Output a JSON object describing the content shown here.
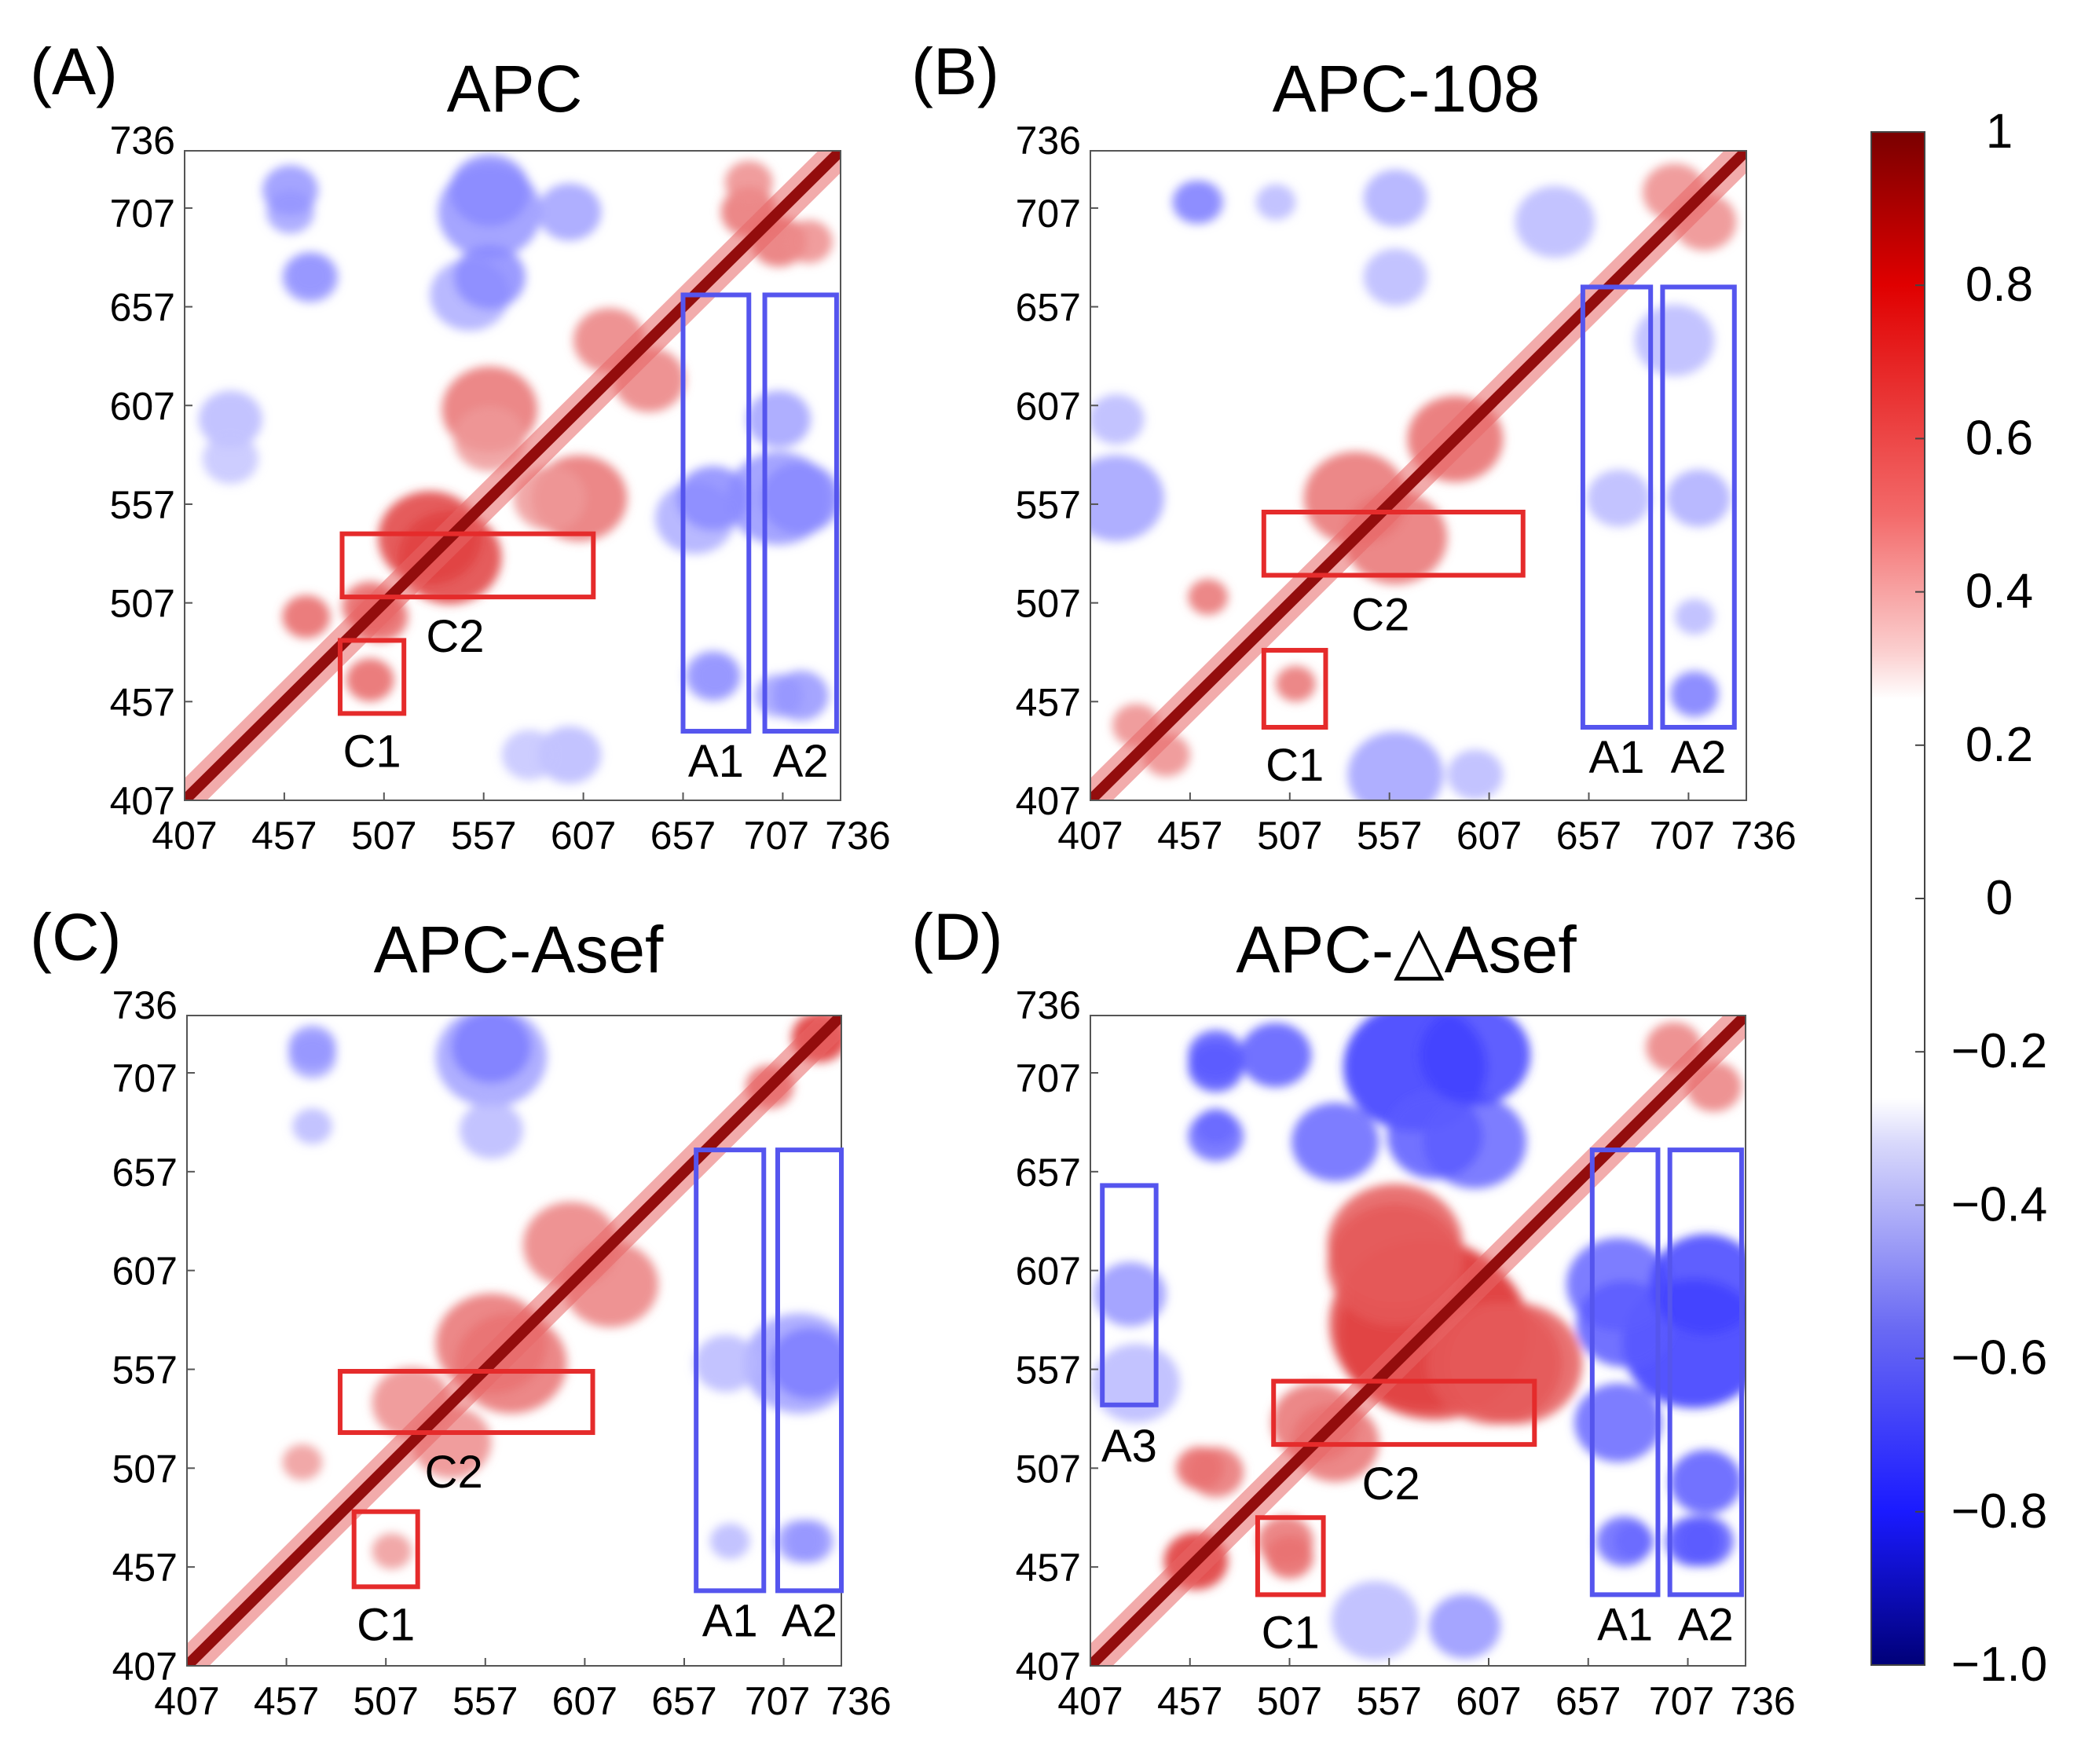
{
  "figure": {
    "description": "Dynamic cross-correlation maps of APC residues 407-736 for four systems",
    "colorbar": {
      "tick_labels": [
        "1",
        "0.8",
        "0.6",
        "0.4",
        "0.2",
        "0",
        "−0.2",
        "−0.4",
        "−0.6",
        "−0.8",
        "−1.0"
      ],
      "tick_values": [
        1,
        0.8,
        0.6,
        0.4,
        0.2,
        0,
        -0.2,
        -0.4,
        -0.6,
        -0.8,
        -1.0
      ],
      "range": [
        -1.0,
        1
      ],
      "colors": {
        "positive_max": "#7a0000",
        "positive": "#e00000",
        "neutral": "#ffffff",
        "negative": "#1a1aff",
        "negative_max": "#000078"
      }
    },
    "colors": {
      "c_box": "#e52b2b",
      "a_box": "#5555ee"
    }
  },
  "chart_data": [
    {
      "type": "heatmap",
      "panel_label": "(A)",
      "title": "APC",
      "axis_range": [
        407,
        736
      ],
      "x_ticks": [
        407,
        457,
        507,
        557,
        607,
        657,
        707,
        736
      ],
      "y_ticks": [
        407,
        457,
        507,
        557,
        607,
        657,
        707,
        736
      ],
      "x_tick_labels": [
        "407",
        "457",
        "507",
        "557",
        "607",
        "657",
        "707",
        "736"
      ],
      "y_tick_labels": [
        "407",
        "457",
        "507",
        "557",
        "607",
        "657",
        "707",
        "736"
      ],
      "regions": [
        {
          "label": "C2",
          "kind": "positive",
          "x": [
            486,
            612
          ],
          "y": [
            510,
            542
          ]
        },
        {
          "label": "C1",
          "kind": "positive",
          "x": [
            485,
            517
          ],
          "y": [
            451,
            488
          ]
        },
        {
          "label": "A1",
          "kind": "negative",
          "x": [
            657,
            690
          ],
          "y": [
            442,
            663
          ]
        },
        {
          "label": "A2",
          "kind": "negative",
          "x": [
            698,
            734
          ],
          "y": [
            442,
            663
          ]
        }
      ],
      "blobs": [
        {
          "x": 540,
          "y": 530,
          "v": 0.75,
          "r": 26
        },
        {
          "x": 505,
          "y": 500,
          "v": 0.6,
          "r": 14
        },
        {
          "x": 500,
          "y": 468,
          "v": 0.6,
          "r": 12
        },
        {
          "x": 560,
          "y": 605,
          "v": 0.55,
          "r": 24
        },
        {
          "x": 620,
          "y": 640,
          "v": 0.5,
          "r": 18
        },
        {
          "x": 590,
          "y": 560,
          "v": 0.4,
          "r": 18
        },
        {
          "x": 690,
          "y": 705,
          "v": 0.55,
          "r": 14
        },
        {
          "x": 720,
          "y": 690,
          "v": 0.45,
          "r": 12
        },
        {
          "x": 560,
          "y": 705,
          "v": -0.45,
          "r": 26
        },
        {
          "x": 600,
          "y": 705,
          "v": -0.4,
          "r": 16
        },
        {
          "x": 460,
          "y": 705,
          "v": -0.4,
          "r": 12
        },
        {
          "x": 470,
          "y": 673,
          "v": -0.4,
          "r": 11
        },
        {
          "x": 550,
          "y": 663,
          "v": -0.35,
          "r": 20
        },
        {
          "x": 672,
          "y": 560,
          "v": -0.5,
          "r": 18
        },
        {
          "x": 716,
          "y": 560,
          "v": -0.5,
          "r": 20
        },
        {
          "x": 672,
          "y": 470,
          "v": -0.45,
          "r": 14
        },
        {
          "x": 716,
          "y": 460,
          "v": -0.45,
          "r": 14
        },
        {
          "x": 600,
          "y": 430,
          "v": -0.3,
          "r": 16
        },
        {
          "x": 430,
          "y": 580,
          "v": -0.25,
          "r": 14
        }
      ]
    },
    {
      "type": "heatmap",
      "panel_label": "(B)",
      "title": "APC-108",
      "axis_range": [
        407,
        736
      ],
      "x_ticks": [
        407,
        457,
        507,
        557,
        607,
        657,
        707,
        736
      ],
      "y_ticks": [
        407,
        457,
        507,
        557,
        607,
        657,
        707,
        736
      ],
      "x_tick_labels": [
        "407",
        "457",
        "507",
        "557",
        "607",
        "657",
        "707",
        "736"
      ],
      "y_tick_labels": [
        "407",
        "457",
        "507",
        "557",
        "607",
        "657",
        "707",
        "736"
      ],
      "regions": [
        {
          "label": "C2",
          "kind": "positive",
          "x": [
            494,
            624
          ],
          "y": [
            521,
            553
          ]
        },
        {
          "label": "C1",
          "kind": "positive",
          "x": [
            494,
            525
          ],
          "y": [
            444,
            483
          ]
        },
        {
          "label": "A1",
          "kind": "negative",
          "x": [
            654,
            688
          ],
          "y": [
            444,
            667
          ]
        },
        {
          "label": "A2",
          "kind": "negative",
          "x": [
            694,
            730
          ],
          "y": [
            444,
            667
          ]
        }
      ],
      "blobs": [
        {
          "x": 560,
          "y": 540,
          "v": 0.55,
          "r": 26
        },
        {
          "x": 590,
          "y": 590,
          "v": 0.5,
          "r": 24
        },
        {
          "x": 510,
          "y": 466,
          "v": 0.55,
          "r": 10
        },
        {
          "x": 430,
          "y": 445,
          "v": 0.45,
          "r": 12
        },
        {
          "x": 700,
          "y": 715,
          "v": 0.45,
          "r": 16
        },
        {
          "x": 640,
          "y": 700,
          "v": -0.3,
          "r": 20
        },
        {
          "x": 462,
          "y": 710,
          "v": -0.4,
          "r": 12
        },
        {
          "x": 500,
          "y": 710,
          "v": -0.3,
          "r": 10
        },
        {
          "x": 560,
          "y": 420,
          "v": -0.4,
          "r": 24
        },
        {
          "x": 710,
          "y": 460,
          "v": -0.5,
          "r": 12
        },
        {
          "x": 712,
          "y": 560,
          "v": -0.35,
          "r": 16
        },
        {
          "x": 672,
          "y": 560,
          "v": -0.3,
          "r": 16
        },
        {
          "x": 420,
          "y": 600,
          "v": -0.3,
          "r": 14
        }
      ]
    },
    {
      "type": "heatmap",
      "panel_label": "(C)",
      "title": "APC-Asef",
      "axis_range": [
        407,
        736
      ],
      "x_ticks": [
        407,
        457,
        507,
        557,
        607,
        657,
        707,
        736
      ],
      "y_ticks": [
        407,
        457,
        507,
        557,
        607,
        657,
        707,
        736
      ],
      "x_tick_labels": [
        "407",
        "457",
        "507",
        "557",
        "607",
        "657",
        "707",
        "736"
      ],
      "y_tick_labels": [
        "407",
        "457",
        "507",
        "557",
        "607",
        "657",
        "707",
        "736"
      ],
      "regions": [
        {
          "label": "C2",
          "kind": "positive",
          "x": [
            484,
            611
          ],
          "y": [
            525,
            556
          ]
        },
        {
          "label": "C1",
          "kind": "positive",
          "x": [
            491,
            523
          ],
          "y": [
            447,
            485
          ]
        },
        {
          "label": "A1",
          "kind": "negative",
          "x": [
            663,
            697
          ],
          "y": [
            445,
            668
          ]
        },
        {
          "label": "A2",
          "kind": "negative",
          "x": [
            704,
            736
          ],
          "y": [
            445,
            668
          ]
        }
      ],
      "blobs": [
        {
          "x": 560,
          "y": 570,
          "v": 0.55,
          "r": 28
        },
        {
          "x": 600,
          "y": 620,
          "v": 0.5,
          "r": 24
        },
        {
          "x": 520,
          "y": 540,
          "v": 0.45,
          "r": 20
        },
        {
          "x": 725,
          "y": 725,
          "v": 0.7,
          "r": 14
        },
        {
          "x": 700,
          "y": 700,
          "v": 0.5,
          "r": 12
        },
        {
          "x": 510,
          "y": 465,
          "v": 0.4,
          "r": 10
        },
        {
          "x": 560,
          "y": 715,
          "v": -0.4,
          "r": 28
        },
        {
          "x": 470,
          "y": 715,
          "v": -0.4,
          "r": 12
        },
        {
          "x": 470,
          "y": 680,
          "v": -0.3,
          "r": 10
        },
        {
          "x": 720,
          "y": 560,
          "v": -0.55,
          "r": 20
        },
        {
          "x": 678,
          "y": 560,
          "v": -0.3,
          "r": 16
        },
        {
          "x": 720,
          "y": 470,
          "v": -0.45,
          "r": 12
        }
      ]
    },
    {
      "type": "heatmap",
      "panel_label": "(D)",
      "title": "APC-△Asef",
      "axis_range": [
        407,
        736
      ],
      "x_ticks": [
        407,
        457,
        507,
        557,
        607,
        657,
        707,
        736
      ],
      "y_ticks": [
        407,
        457,
        507,
        557,
        607,
        657,
        707,
        736
      ],
      "x_tick_labels": [
        "407",
        "457",
        "507",
        "557",
        "607",
        "657",
        "707",
        "736"
      ],
      "y_tick_labels": [
        "407",
        "457",
        "507",
        "557",
        "607",
        "657",
        "707",
        "736"
      ],
      "regions": [
        {
          "label": "C2",
          "kind": "positive",
          "x": [
            499,
            630
          ],
          "y": [
            519,
            551
          ]
        },
        {
          "label": "C1",
          "kind": "positive",
          "x": [
            491,
            524
          ],
          "y": [
            443,
            482
          ]
        },
        {
          "label": "A1",
          "kind": "negative",
          "x": [
            659,
            692
          ],
          "y": [
            443,
            668
          ]
        },
        {
          "label": "A2",
          "kind": "negative",
          "x": [
            698,
            734
          ],
          "y": [
            443,
            668
          ]
        },
        {
          "label": "A3",
          "kind": "negative",
          "x": [
            413,
            440
          ],
          "y": [
            539,
            650
          ]
        }
      ],
      "blobs": [
        {
          "x": 575,
          "y": 580,
          "v": 0.75,
          "r": 48
        },
        {
          "x": 560,
          "y": 620,
          "v": 0.65,
          "r": 34
        },
        {
          "x": 610,
          "y": 560,
          "v": 0.65,
          "r": 34
        },
        {
          "x": 530,
          "y": 520,
          "v": 0.55,
          "r": 22
        },
        {
          "x": 460,
          "y": 460,
          "v": 0.7,
          "r": 16
        },
        {
          "x": 507,
          "y": 462,
          "v": 0.6,
          "r": 12
        },
        {
          "x": 470,
          "y": 505,
          "v": 0.55,
          "r": 14
        },
        {
          "x": 700,
          "y": 720,
          "v": 0.5,
          "r": 14
        },
        {
          "x": 570,
          "y": 710,
          "v": -0.85,
          "r": 36
        },
        {
          "x": 600,
          "y": 672,
          "v": -0.65,
          "r": 26
        },
        {
          "x": 530,
          "y": 672,
          "v": -0.65,
          "r": 22
        },
        {
          "x": 470,
          "y": 710,
          "v": -0.75,
          "r": 14
        },
        {
          "x": 470,
          "y": 680,
          "v": -0.55,
          "r": 10
        },
        {
          "x": 675,
          "y": 580,
          "v": -0.7,
          "r": 24
        },
        {
          "x": 716,
          "y": 600,
          "v": -0.8,
          "r": 28
        },
        {
          "x": 716,
          "y": 500,
          "v": -0.7,
          "r": 18
        },
        {
          "x": 675,
          "y": 470,
          "v": -0.65,
          "r": 14
        },
        {
          "x": 716,
          "y": 470,
          "v": -0.7,
          "r": 14
        },
        {
          "x": 427,
          "y": 595,
          "v": -0.45,
          "r": 18
        },
        {
          "x": 550,
          "y": 430,
          "v": -0.3,
          "r": 22
        }
      ]
    }
  ]
}
